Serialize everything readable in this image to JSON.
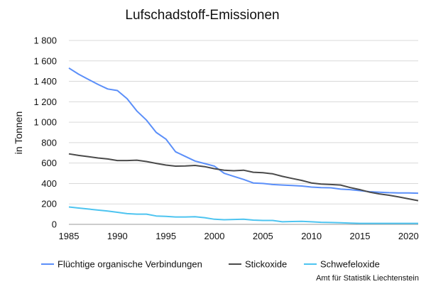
{
  "chart_data": {
    "type": "line",
    "title": "Lufschadstoff-Emissionen",
    "xlabel": "",
    "ylabel": "in Tonnen",
    "source": "Amt für Statistik Liechtenstein",
    "xlim": [
      1985,
      2021
    ],
    "ylim": [
      0,
      1800
    ],
    "x_ticks": [
      1985,
      1990,
      1995,
      2000,
      2005,
      2010,
      2015,
      2020
    ],
    "x_tick_labels": [
      "1985",
      "1990",
      "1995",
      "2000",
      "2005",
      "2010",
      "2015",
      "2020"
    ],
    "y_ticks": [
      0,
      200,
      400,
      600,
      800,
      1000,
      1200,
      1400,
      1600,
      1800
    ],
    "y_tick_labels": [
      "0",
      "200",
      "400",
      "600",
      "800",
      "1 000",
      "1 200",
      "1 400",
      "1 600",
      "1 800"
    ],
    "grid": "horizontal",
    "legend_position": "bottom",
    "x": [
      1985,
      1986,
      1987,
      1988,
      1989,
      1990,
      1991,
      1992,
      1993,
      1994,
      1995,
      1996,
      1997,
      1998,
      1999,
      2000,
      2001,
      2002,
      2003,
      2004,
      2005,
      2006,
      2007,
      2008,
      2009,
      2010,
      2011,
      2012,
      2013,
      2014,
      2015,
      2016,
      2017,
      2018,
      2019,
      2020,
      2021
    ],
    "series": [
      {
        "name": "Flüchtige organische Verbindungen",
        "color": "#5b8ff9",
        "values": [
          1530,
          1470,
          1420,
          1370,
          1325,
          1310,
          1230,
          1110,
          1020,
          900,
          835,
          710,
          665,
          620,
          595,
          570,
          500,
          470,
          440,
          405,
          400,
          390,
          385,
          380,
          375,
          365,
          360,
          358,
          345,
          340,
          330,
          320,
          315,
          310,
          308,
          308,
          305
        ]
      },
      {
        "name": "Stickoxide",
        "color": "#4a4a4a",
        "values": [
          690,
          675,
          663,
          650,
          640,
          625,
          625,
          628,
          615,
          597,
          580,
          570,
          572,
          577,
          565,
          545,
          530,
          525,
          530,
          510,
          505,
          495,
          470,
          450,
          430,
          405,
          395,
          390,
          385,
          360,
          340,
          315,
          298,
          285,
          268,
          250,
          232
        ]
      },
      {
        "name": "Schwefeloxide",
        "color": "#4dc4f0",
        "values": [
          170,
          160,
          150,
          140,
          130,
          118,
          105,
          100,
          100,
          82,
          78,
          72,
          72,
          75,
          65,
          50,
          45,
          48,
          50,
          42,
          38,
          38,
          25,
          28,
          30,
          25,
          20,
          18,
          15,
          12,
          10,
          10,
          10,
          10,
          10,
          10,
          10
        ]
      }
    ]
  }
}
